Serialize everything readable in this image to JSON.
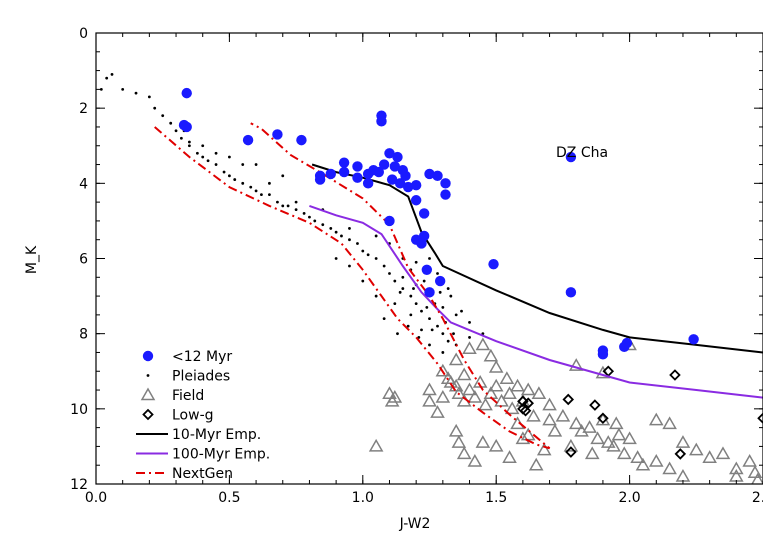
{
  "chart_data": {
    "type": "scatter",
    "xlabel": "J-W2",
    "ylabel": "M_K",
    "xlim": [
      0.0,
      2.5
    ],
    "ylim": [
      12,
      0
    ],
    "y_inverted": true,
    "x_ticks": [
      "0.0",
      "0.5",
      "1.0",
      "1.5",
      "2.0",
      "2.5"
    ],
    "y_ticks": [
      "0",
      "2",
      "4",
      "6",
      "8",
      "10",
      "12"
    ],
    "x_tick_values": [
      0.0,
      0.5,
      1.0,
      1.5,
      2.0,
      2.5
    ],
    "y_tick_values": [
      0,
      2,
      4,
      6,
      8,
      10,
      12
    ],
    "legend_position": "bottom-left",
    "annotation": {
      "text": "DZ Cha",
      "x": 1.79,
      "y": 3.15
    },
    "series": [
      {
        "name": "<12 Myr",
        "marker": "filled-circle",
        "color": "#1a1aff",
        "points": [
          [
            0.34,
            1.6
          ],
          [
            0.33,
            2.45
          ],
          [
            0.34,
            2.5
          ],
          [
            0.57,
            2.85
          ],
          [
            0.68,
            2.7
          ],
          [
            0.77,
            2.85
          ],
          [
            0.84,
            3.9
          ],
          [
            0.84,
            3.8
          ],
          [
            0.88,
            3.75
          ],
          [
            0.93,
            3.7
          ],
          [
            0.93,
            3.45
          ],
          [
            0.98,
            3.55
          ],
          [
            0.98,
            3.85
          ],
          [
            1.02,
            3.75
          ],
          [
            1.02,
            4.0
          ],
          [
            1.04,
            3.65
          ],
          [
            1.07,
            2.2
          ],
          [
            1.07,
            2.35
          ],
          [
            1.06,
            3.7
          ],
          [
            1.08,
            3.5
          ],
          [
            1.1,
            3.2
          ],
          [
            1.11,
            3.9
          ],
          [
            1.12,
            3.55
          ],
          [
            1.13,
            3.3
          ],
          [
            1.15,
            3.65
          ],
          [
            1.14,
            4.0
          ],
          [
            1.16,
            3.8
          ],
          [
            1.17,
            4.1
          ],
          [
            1.2,
            4.05
          ],
          [
            1.2,
            4.45
          ],
          [
            1.1,
            5.0
          ],
          [
            1.23,
            4.8
          ],
          [
            1.23,
            5.4
          ],
          [
            1.25,
            3.75
          ],
          [
            1.28,
            3.8
          ],
          [
            1.31,
            4.0
          ],
          [
            1.31,
            4.3
          ],
          [
            1.2,
            5.5
          ],
          [
            1.22,
            5.6
          ],
          [
            1.24,
            6.3
          ],
          [
            1.25,
            6.9
          ],
          [
            1.29,
            6.6
          ],
          [
            1.49,
            6.15
          ],
          [
            1.78,
            3.3
          ],
          [
            1.78,
            6.9
          ],
          [
            1.9,
            8.45
          ],
          [
            1.9,
            8.55
          ],
          [
            1.98,
            8.35
          ],
          [
            2.24,
            8.15
          ],
          [
            1.99,
            8.25
          ]
        ]
      },
      {
        "name": "Pleiades",
        "marker": "small-dot",
        "color": "#000000",
        "points": [
          [
            0.02,
            1.5
          ],
          [
            0.04,
            1.2
          ],
          [
            0.06,
            1.1
          ],
          [
            0.1,
            1.5
          ],
          [
            0.15,
            1.6
          ],
          [
            0.2,
            1.7
          ],
          [
            0.22,
            2.0
          ],
          [
            0.25,
            2.2
          ],
          [
            0.28,
            2.4
          ],
          [
            0.3,
            2.6
          ],
          [
            0.32,
            2.8
          ],
          [
            0.35,
            3.0
          ],
          [
            0.38,
            3.2
          ],
          [
            0.4,
            3.3
          ],
          [
            0.42,
            3.4
          ],
          [
            0.45,
            3.5
          ],
          [
            0.48,
            3.7
          ],
          [
            0.5,
            3.8
          ],
          [
            0.52,
            3.9
          ],
          [
            0.55,
            4.0
          ],
          [
            0.58,
            4.1
          ],
          [
            0.6,
            4.2
          ],
          [
            0.62,
            4.3
          ],
          [
            0.65,
            4.3
          ],
          [
            0.68,
            4.5
          ],
          [
            0.7,
            4.6
          ],
          [
            0.72,
            4.6
          ],
          [
            0.75,
            4.7
          ],
          [
            0.78,
            4.8
          ],
          [
            0.8,
            4.9
          ],
          [
            0.82,
            5.0
          ],
          [
            0.85,
            5.1
          ],
          [
            0.88,
            5.2
          ],
          [
            0.9,
            5.3
          ],
          [
            0.92,
            5.4
          ],
          [
            0.95,
            5.5
          ],
          [
            0.98,
            5.6
          ],
          [
            1.0,
            5.8
          ],
          [
            1.02,
            5.9
          ],
          [
            1.05,
            6.0
          ],
          [
            1.08,
            6.2
          ],
          [
            1.1,
            6.4
          ],
          [
            1.12,
            6.6
          ],
          [
            1.15,
            6.8
          ],
          [
            1.18,
            7.0
          ],
          [
            1.2,
            7.2
          ],
          [
            1.22,
            7.4
          ],
          [
            1.25,
            7.6
          ],
          [
            1.28,
            7.8
          ],
          [
            1.3,
            8.0
          ],
          [
            1.32,
            8.2
          ],
          [
            1.15,
            6.5
          ],
          [
            1.2,
            6.7
          ],
          [
            1.25,
            7.0
          ],
          [
            1.3,
            7.3
          ],
          [
            1.35,
            7.5
          ],
          [
            1.4,
            7.7
          ],
          [
            1.45,
            8.0
          ],
          [
            1.28,
            6.4
          ],
          [
            1.32,
            6.8
          ],
          [
            1.18,
            7.5
          ],
          [
            1.22,
            7.9
          ],
          [
            1.12,
            7.2
          ],
          [
            1.08,
            7.6
          ],
          [
            1.05,
            7.0
          ],
          [
            1.0,
            6.6
          ],
          [
            0.95,
            6.2
          ],
          [
            0.9,
            6.0
          ],
          [
            1.25,
            8.3
          ],
          [
            1.3,
            8.5
          ],
          [
            1.35,
            8.3
          ],
          [
            1.4,
            8.1
          ],
          [
            1.25,
            6.0
          ],
          [
            1.2,
            6.1
          ],
          [
            1.15,
            6.0
          ],
          [
            1.1,
            5.6
          ],
          [
            0.7,
            3.8
          ],
          [
            0.6,
            3.5
          ],
          [
            0.5,
            3.3
          ],
          [
            0.45,
            3.2
          ],
          [
            0.4,
            3.0
          ],
          [
            0.33,
            2.6
          ],
          [
            0.35,
            2.9
          ],
          [
            0.55,
            3.5
          ],
          [
            0.65,
            4.0
          ],
          [
            0.75,
            4.5
          ],
          [
            0.85,
            4.7
          ],
          [
            0.95,
            5.2
          ],
          [
            1.05,
            5.4
          ],
          [
            1.27,
            7.2
          ],
          [
            1.33,
            7.0
          ],
          [
            1.37,
            7.4
          ],
          [
            1.23,
            6.6
          ],
          [
            1.18,
            6.3
          ],
          [
            1.14,
            6.9
          ],
          [
            1.31,
            7.7
          ],
          [
            1.26,
            7.9
          ],
          [
            1.21,
            8.1
          ],
          [
            1.34,
            8.0
          ],
          [
            1.29,
            6.9
          ],
          [
            1.24,
            7.3
          ],
          [
            1.19,
            6.8
          ],
          [
            1.17,
            7.8
          ],
          [
            1.13,
            8.0
          ]
        ]
      },
      {
        "name": "Field",
        "marker": "open-triangle",
        "color": "#808080",
        "points": [
          [
            1.05,
            11.0
          ],
          [
            1.1,
            9.6
          ],
          [
            1.11,
            9.8
          ],
          [
            1.12,
            9.7
          ],
          [
            1.25,
            9.5
          ],
          [
            1.3,
            9.7
          ],
          [
            1.32,
            9.2
          ],
          [
            1.35,
            9.4
          ],
          [
            1.36,
            9.6
          ],
          [
            1.38,
            9.8
          ],
          [
            1.4,
            9.5
          ],
          [
            1.42,
            9.7
          ],
          [
            1.44,
            9.3
          ],
          [
            1.46,
            9.9
          ],
          [
            1.48,
            9.6
          ],
          [
            1.5,
            9.4
          ],
          [
            1.52,
            9.8
          ],
          [
            1.54,
            9.2
          ],
          [
            1.55,
            9.6
          ],
          [
            1.56,
            10.0
          ],
          [
            1.58,
            9.4
          ],
          [
            1.6,
            9.8
          ],
          [
            1.62,
            9.5
          ],
          [
            1.64,
            10.2
          ],
          [
            1.66,
            9.6
          ],
          [
            1.7,
            9.9
          ],
          [
            1.75,
            10.2
          ],
          [
            1.8,
            10.4
          ],
          [
            1.82,
            10.6
          ],
          [
            1.85,
            10.5
          ],
          [
            1.88,
            10.8
          ],
          [
            1.9,
            10.3
          ],
          [
            1.92,
            10.9
          ],
          [
            1.94,
            11.0
          ],
          [
            1.96,
            10.7
          ],
          [
            1.98,
            11.2
          ],
          [
            2.0,
            10.8
          ],
          [
            2.05,
            11.5
          ],
          [
            2.1,
            11.4
          ],
          [
            2.15,
            11.6
          ],
          [
            2.2,
            11.8
          ],
          [
            2.3,
            11.3
          ],
          [
            2.35,
            11.2
          ],
          [
            2.4,
            11.6
          ],
          [
            2.45,
            11.4
          ],
          [
            2.48,
            11.9
          ],
          [
            1.35,
            10.6
          ],
          [
            1.36,
            10.9
          ],
          [
            1.38,
            11.2
          ],
          [
            1.42,
            11.4
          ],
          [
            1.45,
            10.9
          ],
          [
            1.5,
            11.0
          ],
          [
            1.55,
            11.3
          ],
          [
            1.6,
            10.8
          ],
          [
            1.65,
            11.5
          ],
          [
            1.7,
            10.3
          ],
          [
            1.8,
            8.85
          ],
          [
            1.9,
            9.05
          ],
          [
            2.0,
            8.3
          ],
          [
            1.45,
            8.3
          ],
          [
            1.48,
            8.6
          ],
          [
            1.5,
            8.9
          ],
          [
            1.4,
            8.4
          ],
          [
            1.35,
            8.7
          ],
          [
            1.3,
            9.0
          ],
          [
            1.38,
            9.1
          ],
          [
            1.33,
            9.3
          ],
          [
            1.25,
            9.8
          ],
          [
            1.28,
            10.1
          ],
          [
            2.1,
            10.3
          ],
          [
            2.15,
            10.4
          ],
          [
            2.2,
            10.9
          ],
          [
            2.25,
            11.1
          ],
          [
            2.4,
            11.8
          ],
          [
            2.47,
            11.7
          ],
          [
            1.58,
            10.4
          ],
          [
            1.62,
            10.7
          ],
          [
            1.68,
            11.1
          ],
          [
            1.72,
            10.6
          ],
          [
            1.78,
            11.0
          ],
          [
            1.86,
            11.2
          ],
          [
            1.95,
            10.4
          ],
          [
            2.03,
            11.3
          ]
        ]
      },
      {
        "name": "Low-g",
        "marker": "open-diamond",
        "color": "#000000",
        "points": [
          [
            1.6,
            9.8
          ],
          [
            1.6,
            10.0
          ],
          [
            1.61,
            10.05
          ],
          [
            1.62,
            9.85
          ],
          [
            1.77,
            9.75
          ],
          [
            1.78,
            11.15
          ],
          [
            1.87,
            9.9
          ],
          [
            1.9,
            10.25
          ],
          [
            1.92,
            9.0
          ],
          [
            1.99,
            8.25
          ],
          [
            2.17,
            9.1
          ],
          [
            2.19,
            11.2
          ],
          [
            2.5,
            10.25
          ]
        ]
      },
      {
        "name": "10-Myr Emp.",
        "marker": "line",
        "color": "#000000",
        "points": [
          [
            0.81,
            3.5
          ],
          [
            0.9,
            3.7
          ],
          [
            1.0,
            3.85
          ],
          [
            1.1,
            4.05
          ],
          [
            1.17,
            4.35
          ],
          [
            1.22,
            5.3
          ],
          [
            1.27,
            5.85
          ],
          [
            1.3,
            6.2
          ],
          [
            1.5,
            6.85
          ],
          [
            1.7,
            7.45
          ],
          [
            1.9,
            7.9
          ],
          [
            2.0,
            8.1
          ],
          [
            2.25,
            8.3
          ],
          [
            2.5,
            8.5
          ]
        ]
      },
      {
        "name": "100-Myr Emp.",
        "marker": "line",
        "color": "#8a2be2",
        "points": [
          [
            0.8,
            4.6
          ],
          [
            0.9,
            4.85
          ],
          [
            1.0,
            5.05
          ],
          [
            1.07,
            5.35
          ],
          [
            1.15,
            6.2
          ],
          [
            1.22,
            6.9
          ],
          [
            1.28,
            7.35
          ],
          [
            1.33,
            7.7
          ],
          [
            1.5,
            8.2
          ],
          [
            1.7,
            8.7
          ],
          [
            1.9,
            9.1
          ],
          [
            2.0,
            9.3
          ],
          [
            2.25,
            9.5
          ],
          [
            2.5,
            9.7
          ]
        ]
      },
      {
        "name": "NextGen",
        "marker": "dash-dot-line",
        "color": "#e00000",
        "points": [
          [
            0.22,
            2.5
          ],
          [
            0.35,
            3.3
          ],
          [
            0.5,
            4.1
          ],
          [
            0.65,
            4.6
          ],
          [
            0.8,
            5.05
          ],
          [
            0.92,
            5.6
          ],
          [
            1.0,
            6.3
          ],
          [
            1.07,
            7.0
          ],
          [
            1.13,
            7.6
          ],
          [
            1.2,
            8.1
          ],
          [
            1.28,
            8.8
          ],
          [
            1.35,
            9.55
          ],
          [
            1.45,
            10.1
          ],
          [
            1.55,
            10.6
          ],
          [
            1.65,
            10.95
          ],
          [
            1.7,
            11.05
          ],
          [
            1.55,
            10.15
          ],
          [
            1.45,
            9.5
          ],
          [
            1.38,
            8.7
          ],
          [
            1.3,
            7.6
          ],
          [
            1.25,
            7.0
          ],
          [
            1.17,
            6.25
          ],
          [
            1.1,
            5.1
          ],
          [
            1.0,
            4.4
          ],
          [
            0.85,
            3.75
          ],
          [
            0.73,
            3.25
          ],
          [
            0.62,
            2.55
          ],
          [
            0.58,
            2.4
          ]
        ]
      }
    ]
  }
}
